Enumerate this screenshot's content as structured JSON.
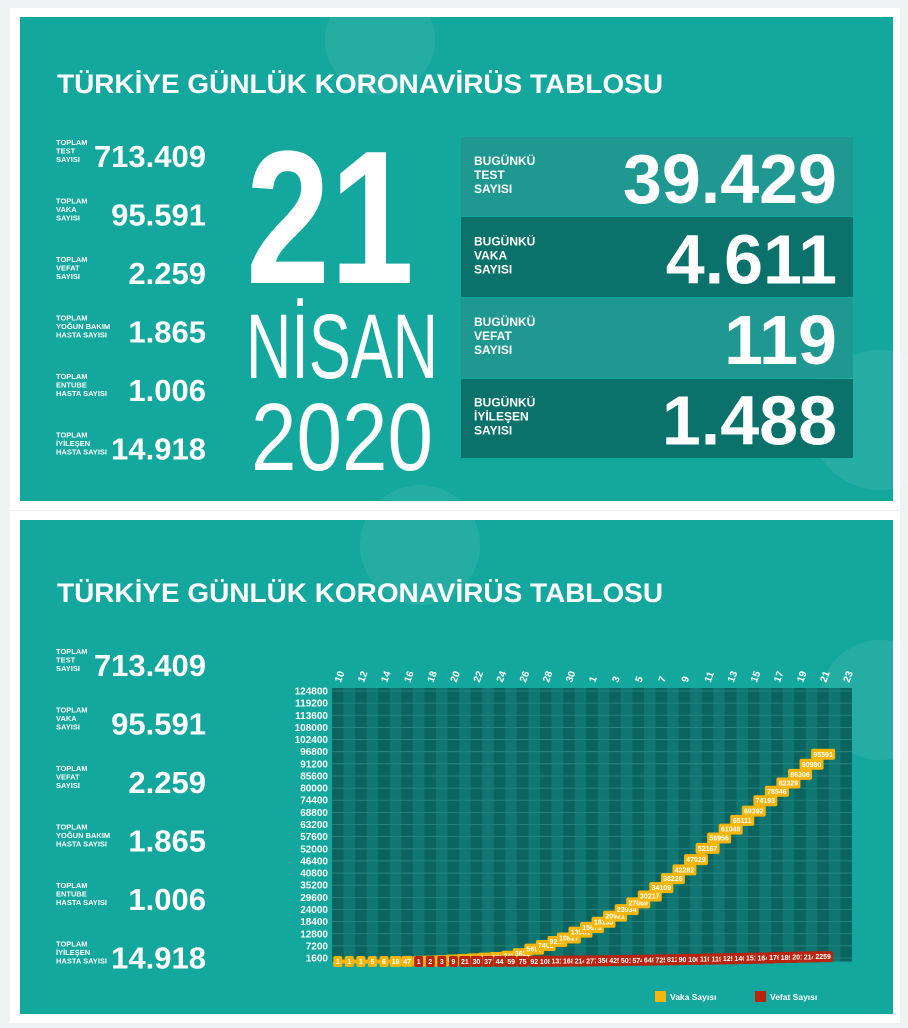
{
  "title": "TÜRKİYE GÜNLÜK KORONAVİRÜS TABLOSU",
  "totals": [
    {
      "label": [
        "TOPLAM",
        "TEST",
        "SAYISI"
      ],
      "value": "713.409"
    },
    {
      "label": [
        "TOPLAM",
        "VAKA",
        "SAYISI"
      ],
      "value": "95.591"
    },
    {
      "label": [
        "TOPLAM",
        "VEFAT",
        "SAYISI"
      ],
      "value": "2.259"
    },
    {
      "label": [
        "TOPLAM",
        "YOĞUN BAKIM",
        "HASTA SAYISI"
      ],
      "value": "1.865"
    },
    {
      "label": [
        "TOPLAM",
        "ENTUBE",
        "HASTA SAYISI"
      ],
      "value": "1.006"
    },
    {
      "label": [
        "TOPLAM",
        "İYİLEŞEN",
        "HASTA SAYISI"
      ],
      "value": "14.918"
    }
  ],
  "date": {
    "day": "21",
    "month": "NİSAN",
    "year": "2020"
  },
  "today": [
    {
      "label": [
        "BUGÜNKÜ",
        "TEST",
        "SAYISI"
      ],
      "value": "39.429"
    },
    {
      "label": [
        "BUGÜNKÜ",
        "VAKA",
        "SAYISI"
      ],
      "value": "4.611"
    },
    {
      "label": [
        "BUGÜNKÜ",
        "VEFAT",
        "SAYISI"
      ],
      "value": "119"
    },
    {
      "label": [
        "BUGÜNKÜ",
        "İYİLEŞEN",
        "SAYISI"
      ],
      "value": "1.488"
    }
  ],
  "chart_data": {
    "type": "line",
    "categories": [
      "10",
      null,
      "12",
      null,
      "14",
      null,
      "16",
      null,
      "18",
      null,
      "20",
      null,
      "22",
      null,
      "24",
      null,
      "26",
      null,
      "28",
      null,
      "30",
      null,
      "1",
      null,
      "3",
      null,
      "5",
      null,
      "7",
      null,
      "9",
      null,
      "11",
      null,
      "13",
      null,
      "15",
      null,
      "17",
      null,
      "19",
      null,
      "21",
      null,
      "23"
    ],
    "series": [
      {
        "name": "Vaka Sayısı",
        "color": "#f5b50a",
        "values": [
          1,
          1,
          1,
          5,
          6,
          18,
          47,
          98,
          191,
          359,
          670,
          947,
          1236,
          1529,
          1872,
          2433,
          3629,
          5698,
          7402,
          9217,
          10827,
          13531,
          15679,
          18135,
          20921,
          23934,
          27069,
          30217,
          34109,
          38226,
          42282,
          47029,
          52167,
          56956,
          61049,
          65111,
          69392,
          74193,
          78546,
          82329,
          86306,
          90980,
          95591,
          null,
          null
        ]
      },
      {
        "name": "Vefat Sayısı",
        "color": "#b8240c",
        "values": [
          null,
          null,
          null,
          null,
          null,
          null,
          null,
          1,
          2,
          3,
          9,
          21,
          30,
          37,
          44,
          59,
          75,
          92,
          108,
          131,
          168,
          214,
          277,
          356,
          425,
          501,
          574,
          649,
          725,
          812,
          908,
          1006,
          1101,
          1198,
          1296,
          1403,
          1518,
          1643,
          1769,
          1890,
          2017,
          2140,
          2259,
          null,
          null
        ]
      }
    ],
    "ylim": [
      0,
      124800
    ],
    "yticks": [
      1600,
      7200,
      12800,
      18400,
      24000,
      29600,
      35200,
      40800,
      46400,
      52000,
      57600,
      63200,
      68800,
      74400,
      80000,
      85600,
      91200,
      96800,
      102400,
      108000,
      113600,
      119200,
      124800
    ],
    "grid": true,
    "legend": "bottom-right"
  }
}
